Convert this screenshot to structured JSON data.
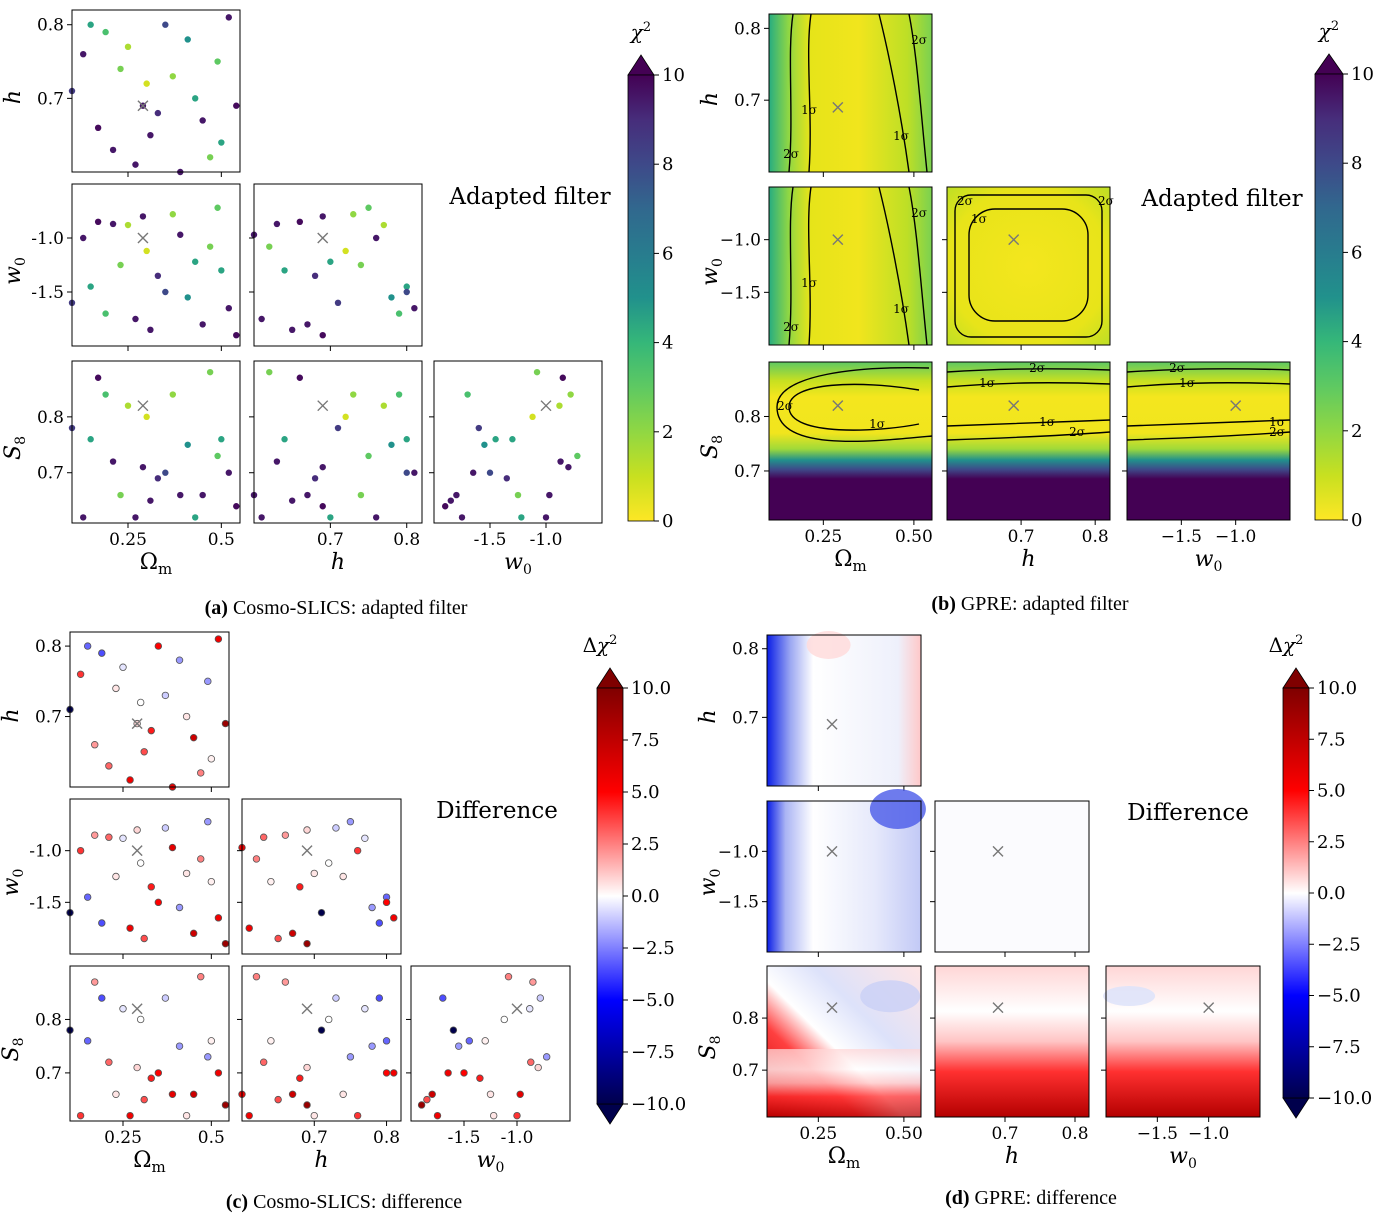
{
  "chart_data": [
    {
      "type": "scatter",
      "panel": "a",
      "caption_letter": "(a)",
      "caption_text": " Cosmo-SLICS: adapted filter",
      "annotation": "Adapted filter",
      "colorbar": {
        "title": "χ²",
        "ticks": [
          "0",
          "2",
          "4",
          "6",
          "8",
          "10"
        ],
        "range": [
          0,
          10
        ],
        "colormap": "viridis_r"
      },
      "params": [
        "Ωm",
        "h",
        "w0",
        "S8"
      ],
      "ticks": {
        "Ωm": [
          "0.25",
          "0.5"
        ],
        "h": [
          "0.7",
          "0.8"
        ],
        "w0": [
          "-1.5",
          "-1.0"
        ],
        "S8": [
          "0.7",
          "0.8"
        ]
      },
      "fiducial": {
        "Ωm": 0.29,
        "h": 0.69,
        "w0": -1.0,
        "S8": 0.82
      },
      "fiducial_marker": "×"
    },
    {
      "type": "heatmap",
      "panel": "b",
      "caption_letter": "(b)",
      "caption_text": " GPRE: adapted filter",
      "annotation": "Adapted filter",
      "colorbar": {
        "title": "χ²",
        "ticks": [
          "0",
          "2",
          "4",
          "6",
          "8",
          "10"
        ],
        "range": [
          0,
          10
        ],
        "colormap": "viridis_r"
      },
      "contour_labels": [
        "1σ",
        "2σ"
      ],
      "ticks": {
        "Ωm": [
          "0.25",
          "0.50"
        ],
        "h": [
          "0.7",
          "0.8"
        ],
        "w0": [
          "−1.5",
          "−1.0"
        ],
        "S8": [
          "0.7",
          "0.8"
        ]
      }
    },
    {
      "type": "scatter",
      "panel": "c",
      "caption_letter": "(c)",
      "caption_text": " Cosmo-SLICS: difference",
      "annotation": "Difference",
      "colorbar": {
        "title": "Δχ²",
        "ticks": [
          "−10.0",
          "−7.5",
          "−5.0",
          "−2.5",
          "0.0",
          "2.5",
          "5.0",
          "7.5",
          "10.0"
        ],
        "range": [
          -10,
          10
        ],
        "colormap": "seismic"
      },
      "ticks": {
        "Ωm": [
          "0.25",
          "0.5"
        ],
        "h": [
          "0.7",
          "0.8"
        ],
        "w0": [
          "-1.5",
          "-1.0"
        ],
        "S8": [
          "0.7",
          "0.8"
        ]
      }
    },
    {
      "type": "heatmap",
      "panel": "d",
      "caption_letter": "(d)",
      "caption_text": " GPRE: difference",
      "annotation": "Difference",
      "colorbar": {
        "title": "Δχ²",
        "ticks": [
          "−10.0",
          "−7.5",
          "−5.0",
          "−2.5",
          "0.0",
          "2.5",
          "5.0",
          "7.5",
          "10.0"
        ],
        "range": [
          -10,
          10
        ],
        "colormap": "seismic"
      },
      "ticks": {
        "Ωm": [
          "0.25",
          "0.50"
        ],
        "h": [
          "0.7",
          "0.8"
        ],
        "w0": [
          "−1.5",
          "−1.0"
        ],
        "S8": [
          "0.7",
          "0.8"
        ]
      }
    }
  ],
  "axis_labels": {
    "Om": "Ωm",
    "h": "h",
    "w0": "w0",
    "S8": "S8"
  },
  "cosmo_slics_points": {
    "Om": [
      0.1,
      0.13,
      0.15,
      0.17,
      0.19,
      0.21,
      0.23,
      0.25,
      0.27,
      0.29,
      0.3,
      0.31,
      0.33,
      0.35,
      0.37,
      0.39,
      0.41,
      0.43,
      0.45,
      0.47,
      0.49,
      0.5,
      0.52,
      0.54
    ],
    "h": [
      0.71,
      0.76,
      0.8,
      0.66,
      0.79,
      0.63,
      0.74,
      0.77,
      0.61,
      0.69,
      0.72,
      0.65,
      0.68,
      0.8,
      0.73,
      0.6,
      0.78,
      0.7,
      0.67,
      0.62,
      0.75,
      0.64,
      0.81,
      0.69
    ],
    "w0": [
      -1.6,
      -1.0,
      -1.45,
      -0.85,
      -1.7,
      -0.87,
      -1.25,
      -0.88,
      -1.75,
      -0.8,
      -1.12,
      -1.85,
      -1.35,
      -1.5,
      -0.78,
      -0.97,
      -1.55,
      -1.22,
      -1.8,
      -1.08,
      -0.72,
      -1.3,
      -1.65,
      -1.9
    ],
    "S8": [
      0.78,
      0.62,
      0.76,
      0.87,
      0.84,
      0.72,
      0.66,
      0.82,
      0.62,
      0.71,
      0.8,
      0.65,
      0.69,
      0.7,
      0.84,
      0.66,
      0.75,
      0.62,
      0.66,
      0.88,
      0.73,
      0.76,
      0.7,
      0.64
    ],
    "chi2": [
      8.5,
      9.5,
      4.5,
      9.8,
      3.5,
      9.5,
      2.5,
      1.5,
      9.5,
      9.5,
      0.8,
      9.5,
      9.0,
      8.0,
      2.0,
      9.5,
      5.0,
      4.5,
      9.5,
      2.5,
      3.0,
      4.5,
      9.5,
      9.8
    ],
    "dchi2": [
      -10.0,
      4.0,
      -3.0,
      2.0,
      -3.5,
      3.0,
      0.5,
      -0.5,
      5.5,
      0.8,
      0.0,
      3.5,
      4.5,
      5.0,
      -1.0,
      6.0,
      -2.0,
      0.5,
      7.0,
      2.5,
      -2.0,
      0.3,
      5.5,
      9.0
    ]
  }
}
